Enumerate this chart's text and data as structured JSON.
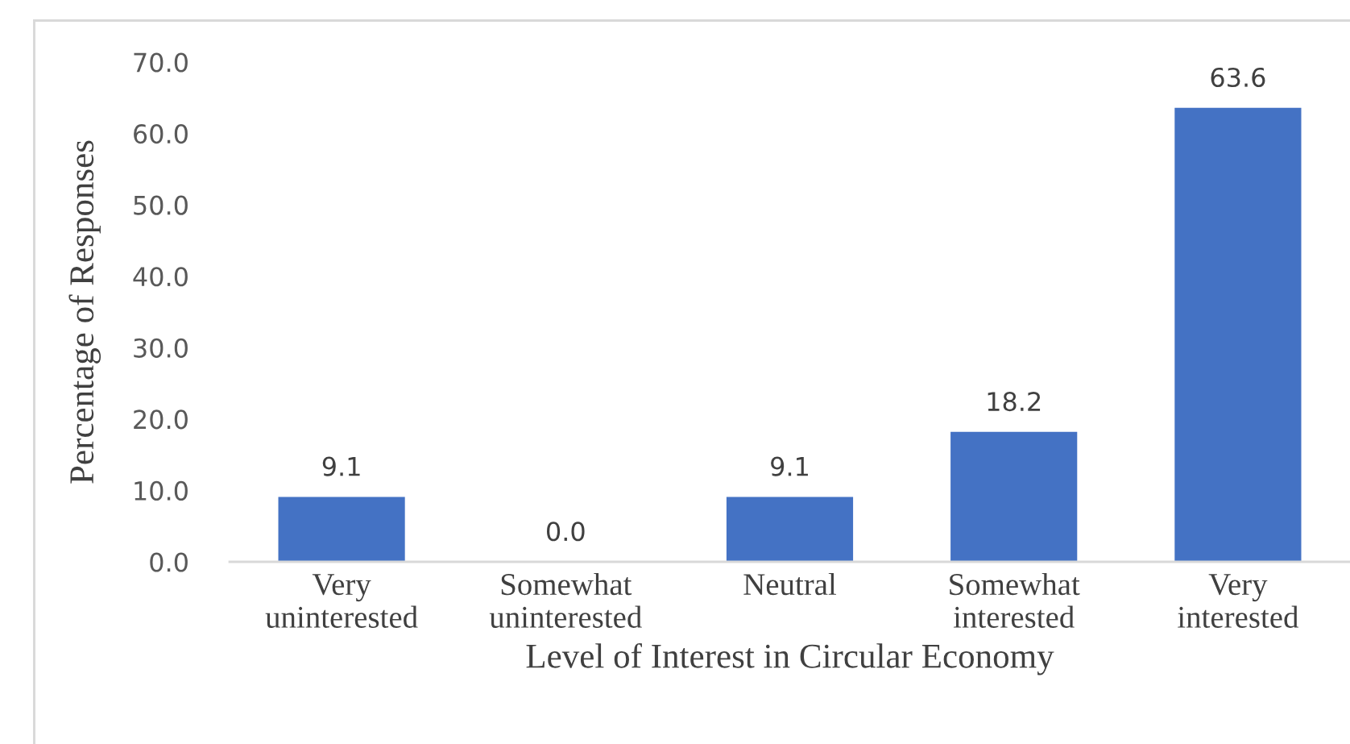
{
  "chart_data": {
    "type": "bar",
    "xlabel": "Level of Interest in Circular Economy",
    "ylabel": "Percentage of Responses",
    "categories": [
      "Very\nuninterested",
      "Somewhat\nuninterested",
      "Neutral",
      "Somewhat\ninterested",
      "Very\ninterested"
    ],
    "values": [
      9.1,
      0.0,
      9.1,
      18.2,
      63.6
    ],
    "color": "#4472c4",
    "value_labels": [
      "9.1",
      "0.0",
      "9.1",
      "18.2",
      "63.6"
    ],
    "ylim": [
      0,
      70
    ],
    "yticks": [
      {
        "value": 0,
        "label": "0.0"
      },
      {
        "value": 10,
        "label": "10.0"
      },
      {
        "value": 20,
        "label": "20.0"
      },
      {
        "value": 30,
        "label": "30.0"
      },
      {
        "value": 40,
        "label": "40.0"
      },
      {
        "value": 50,
        "label": "50.0"
      },
      {
        "value": 60,
        "label": "60.0"
      },
      {
        "value": 70,
        "label": "70.0"
      }
    ],
    "grid": false
  }
}
